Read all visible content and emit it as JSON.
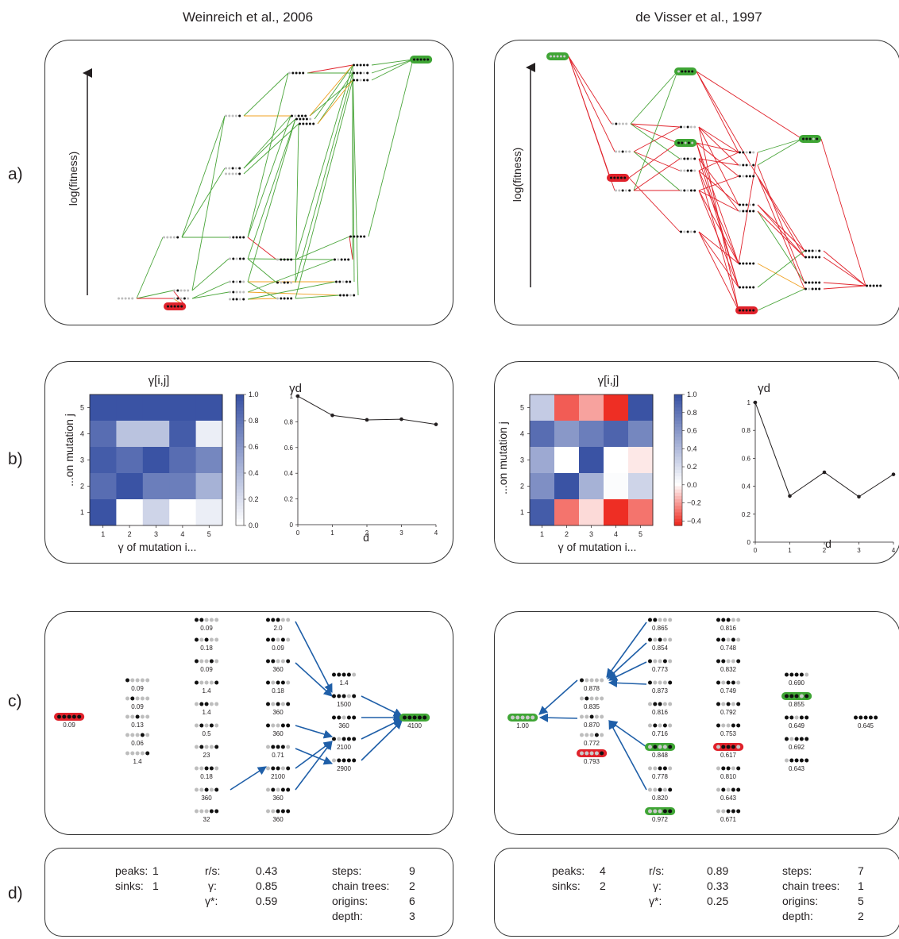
{
  "titles": {
    "left": "Weinreich et al., 2006",
    "right": "de Visser et al., 1997"
  },
  "row_labels": {
    "a": "a)",
    "b": "b)",
    "c": "c)",
    "d": "d)"
  },
  "panel_a": {
    "ylabel": "log(fitness)"
  },
  "panel_b": {
    "heatmap_title": "γ[i,j]",
    "line_title": "γd",
    "heatmap_xlabel": "γ of mutation i...",
    "heatmap_ylabel": "...on mutation j",
    "line_xlabel": "d"
  },
  "colors": {
    "green_edge": "#4aa53a",
    "red_edge": "#e0222b",
    "orange_edge": "#f0a020",
    "green_box": "#3fa535",
    "red_box": "#e0222b",
    "arrow": "#1f5fa8",
    "heat_blue": "#3a53a4",
    "heat_red": "#ee2e24"
  },
  "chart_data": [
    {
      "type": "heatmap",
      "panel": "left",
      "x_categories": [
        "1",
        "2",
        "3",
        "4",
        "5"
      ],
      "y_categories": [
        "1",
        "2",
        "3",
        "4",
        "5"
      ],
      "cells_row_from_top_j5_to_j1": [
        [
          1.0,
          1.0,
          1.0,
          1.0,
          1.0
        ],
        [
          0.85,
          0.35,
          0.35,
          0.95,
          0.1
        ],
        [
          0.95,
          0.85,
          1.0,
          0.85,
          0.7
        ],
        [
          0.85,
          1.0,
          0.75,
          0.75,
          0.45
        ],
        [
          1.0,
          0.0,
          0.25,
          0.0,
          0.1
        ]
      ],
      "colorbar_ticks": [
        "1.0",
        "0.8",
        "0.6",
        "0.4",
        "0.2",
        "0.0"
      ],
      "clim": [
        0,
        1
      ]
    },
    {
      "type": "line",
      "panel": "left",
      "x": [
        0,
        1,
        2,
        3,
        4
      ],
      "y": [
        1.0,
        0.85,
        0.815,
        0.82,
        0.78
      ],
      "xlim": [
        0,
        4
      ],
      "ylim": [
        0,
        1
      ],
      "yticks": [
        "0",
        "0.2",
        "0.4",
        "0.6",
        "0.8",
        "1"
      ],
      "xticks": [
        "0",
        "1",
        "2",
        "3",
        "4"
      ]
    },
    {
      "type": "heatmap",
      "panel": "right",
      "x_categories": [
        "1",
        "2",
        "3",
        "4",
        "5"
      ],
      "y_categories": [
        "1",
        "2",
        "3",
        "4",
        "5"
      ],
      "cells_row_from_top_j5_to_j1": [
        [
          0.3,
          -0.35,
          -0.2,
          -0.45,
          1.0
        ],
        [
          0.85,
          0.6,
          0.75,
          0.9,
          0.7
        ],
        [
          0.5,
          0.0,
          1.0,
          0.0,
          -0.05
        ],
        [
          0.65,
          1.0,
          0.45,
          0.02,
          0.25
        ],
        [
          0.95,
          -0.3,
          -0.08,
          -0.45,
          -0.3
        ]
      ],
      "colorbar_ticks": [
        "1.0",
        "0.8",
        "0.6",
        "0.4",
        "0.2",
        "0.0",
        "−0.2",
        "−0.4"
      ],
      "clim": [
        -0.45,
        1
      ]
    },
    {
      "type": "line",
      "panel": "right",
      "x": [
        0,
        1,
        2,
        3,
        4
      ],
      "y": [
        1.0,
        0.33,
        0.5,
        0.325,
        0.485
      ],
      "xlim": [
        0,
        4
      ],
      "ylim": [
        0,
        1
      ],
      "yticks": [
        "0",
        "0.2",
        "0.4",
        "0.6",
        "0.8",
        "1"
      ],
      "xticks": [
        "0",
        "1",
        "2",
        "3",
        "4"
      ]
    }
  ],
  "panel_c": {
    "left_values": [
      "0.09",
      "0.09",
      "0.09",
      "0.13",
      "0.06",
      "1.4",
      "0.09",
      "0.18",
      "0.09",
      "1.4",
      "1.4",
      "0.5",
      "23",
      "0.18",
      "360",
      "32",
      "2.0",
      "0.09",
      "360",
      "0.18",
      "360",
      "360",
      "0.71",
      "2100",
      "360",
      "360",
      "1.4",
      "1500",
      "360",
      "2100",
      "2900",
      "4100"
    ],
    "right_values": [
      "1.00",
      "0.878",
      "0.835",
      "0.870",
      "0.772",
      "0.793",
      "0.865",
      "0.854",
      "0.773",
      "0.873",
      "0.816",
      "0.716",
      "0.848",
      "0.778",
      "0.820",
      "0.972",
      "0.816",
      "0.748",
      "0.832",
      "0.749",
      "0.792",
      "0.753",
      "0.617",
      "0.810",
      "0.643",
      "0.671",
      "0.690",
      "0.855",
      "0.649",
      "0.692",
      "0.643",
      "0.645"
    ]
  },
  "panel_d": {
    "left": {
      "peaks_label": "peaks:",
      "peaks": "1",
      "sinks_label": "sinks:",
      "sinks": "1",
      "rs_label": "r/s:",
      "rs": "0.43",
      "gamma_label": "γ:",
      "gamma": "0.85",
      "gamma_star_label": "γ*:",
      "gamma_star": "0.59",
      "steps_label": "steps:",
      "steps": "9",
      "chain_label": "chain trees:",
      "chain": "2",
      "origins_label": "origins:",
      "origins": "6",
      "depth_label": "depth:",
      "depth": "3"
    },
    "right": {
      "peaks_label": "peaks:",
      "peaks": "4",
      "sinks_label": "sinks:",
      "sinks": "2",
      "rs_label": "r/s:",
      "rs": "0.89",
      "gamma_label": "γ:",
      "gamma": "0.33",
      "gamma_star_label": "γ*:",
      "gamma_star": "0.25",
      "steps_label": "steps:",
      "steps": "7",
      "chain_label": "chain trees:",
      "chain": "1",
      "origins_label": "origins:",
      "origins": "5",
      "depth_label": "depth:",
      "depth": "2"
    }
  }
}
